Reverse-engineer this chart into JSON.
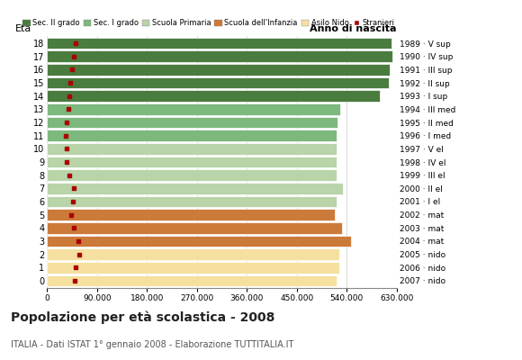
{
  "ages": [
    18,
    17,
    16,
    15,
    14,
    13,
    12,
    11,
    10,
    9,
    8,
    7,
    6,
    5,
    4,
    3,
    2,
    1,
    0
  ],
  "right_labels": [
    "1989 · V sup",
    "1990 · IV sup",
    "1991 · III sup",
    "1992 · II sup",
    "1993 · I sup",
    "1994 · III med",
    "1995 · II med",
    "1996 · I med",
    "1997 · V el",
    "1998 · IV el",
    "1999 · III el",
    "2000 · II el",
    "2001 · I el",
    "2002 · mat",
    "2003 · mat",
    "2004 · mat",
    "2005 · nido",
    "2006 · nido",
    "2007 · nido"
  ],
  "bar_values": [
    620000,
    622000,
    617000,
    615000,
    600000,
    528000,
    523000,
    521000,
    521000,
    521000,
    521000,
    533000,
    522000,
    519000,
    532000,
    548000,
    527000,
    527000,
    522000
  ],
  "stranieri_values": [
    52000,
    48000,
    45000,
    42000,
    41000,
    38000,
    36000,
    34000,
    35000,
    36000,
    40000,
    48000,
    46000,
    43000,
    48000,
    56000,
    58000,
    52000,
    50000
  ],
  "bar_colors": [
    "#4a7c3f",
    "#4a7c3f",
    "#4a7c3f",
    "#4a7c3f",
    "#4a7c3f",
    "#7db87d",
    "#7db87d",
    "#7db87d",
    "#b8d4a8",
    "#b8d4a8",
    "#b8d4a8",
    "#b8d4a8",
    "#b8d4a8",
    "#cc7a3a",
    "#cc7a3a",
    "#cc7a3a",
    "#f5e0a0",
    "#f5e0a0",
    "#f5e0a0"
  ],
  "legend_labels": [
    "Sec. II grado",
    "Sec. I grado",
    "Scuola Primaria",
    "Scuola dell'Infanzia",
    "Asilo Nido",
    "Stranieri"
  ],
  "legend_colors": [
    "#4a7c3f",
    "#7db87d",
    "#b8d4a8",
    "#cc7a3a",
    "#f5e0a0",
    "#aa0000"
  ],
  "title": "Popolazione per età scolastica - 2008",
  "subtitle": "ITALIA - Dati ISTAT 1° gennaio 2008 - Elaborazione TUTTITALIA.IT",
  "xlabel_eta": "Età",
  "xlabel_anno": "Anno di nascita",
  "xlim": [
    0,
    630000
  ],
  "xticks": [
    0,
    90000,
    180000,
    270000,
    360000,
    450000,
    540000,
    630000
  ],
  "xtick_labels": [
    "0",
    "90.000",
    "180.000",
    "270.000",
    "360.000",
    "450.000",
    "540.000",
    "630.000"
  ],
  "bg_color": "#ffffff",
  "bar_height": 0.85,
  "stranieri_color": "#aa0000",
  "grid_color": "#cccccc"
}
